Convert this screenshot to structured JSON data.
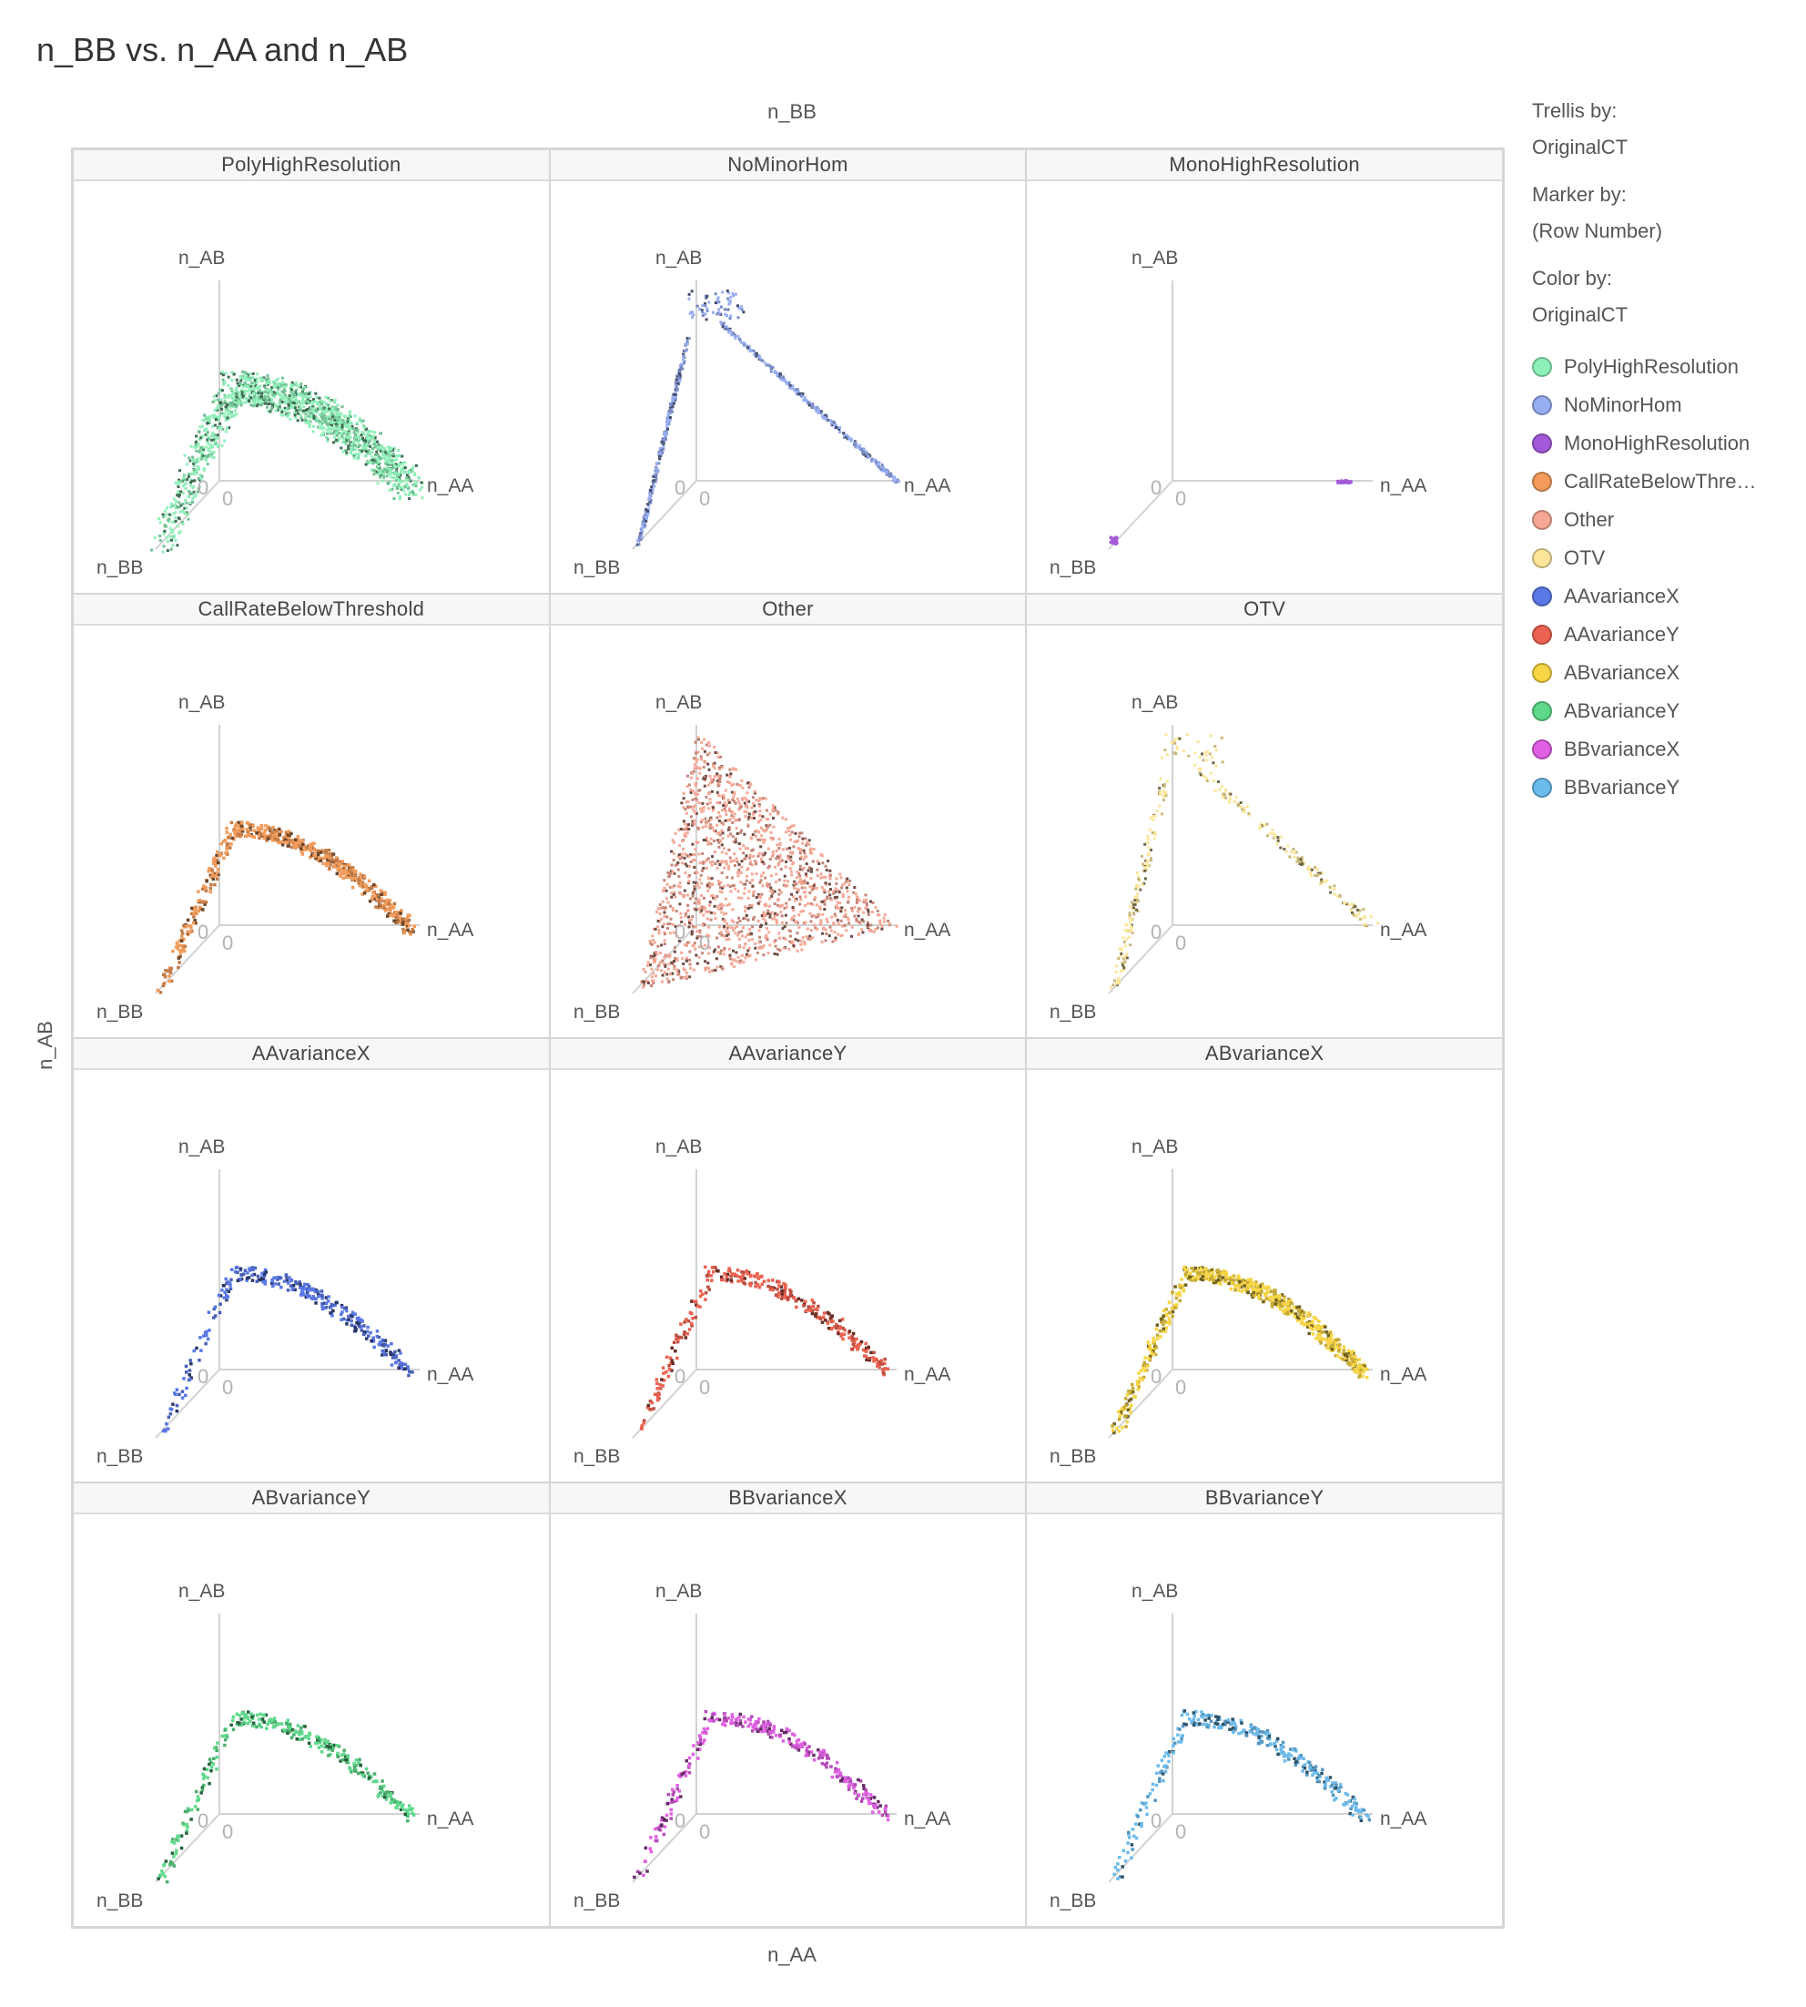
{
  "title": "n_BB vs. n_AA and n_AB",
  "axes": {
    "top": "n_BB",
    "bottom": "n_AA",
    "left": "n_AB"
  },
  "legend": {
    "trellis_by_label": "Trellis by:",
    "trellis_by_value": "OriginalCT",
    "marker_by_label": "Marker by:",
    "marker_by_value": "(Row Number)",
    "color_by_label": "Color by:",
    "color_by_value": "OriginalCT",
    "items": [
      {
        "label": "PolyHighResolution",
        "color": "#8ef0b8"
      },
      {
        "label": "NoMinorHom",
        "color": "#98aef2"
      },
      {
        "label": "MonoHighResolution",
        "color": "#a35ad8"
      },
      {
        "label": "CallRateBelowThre…",
        "color": "#f29b5a"
      },
      {
        "label": "Other",
        "color": "#f6a896"
      },
      {
        "label": "OTV",
        "color": "#fbe69a"
      },
      {
        "label": "AAvarianceX",
        "color": "#5a78e6"
      },
      {
        "label": "AAvarianceY",
        "color": "#eb6250"
      },
      {
        "label": "ABvarianceX",
        "color": "#f7d545"
      },
      {
        "label": "ABvarianceY",
        "color": "#5ed98a"
      },
      {
        "label": "BBvarianceX",
        "color": "#e05fe3"
      },
      {
        "label": "BBvarianceY",
        "color": "#6bbbec"
      }
    ]
  },
  "chart_data": {
    "type": "scatter",
    "projection": "3d",
    "trellis_by": "OriginalCT",
    "axis_labels": {
      "x": "n_AA",
      "y": "n_AB",
      "z": "n_BB"
    },
    "zero_label": "0",
    "panels": [
      {
        "name": "PolyHighResolution",
        "color": "#8ef0b8",
        "shape": "arch",
        "density": "high"
      },
      {
        "name": "NoMinorHom",
        "color": "#98aef2",
        "shape": "edges",
        "density": "medium"
      },
      {
        "name": "MonoHighResolution",
        "color": "#a35ad8",
        "shape": "corners",
        "density": "low"
      },
      {
        "name": "CallRateBelowThreshold",
        "color": "#f29b5a",
        "shape": "arch",
        "density": "medium"
      },
      {
        "name": "Other",
        "color": "#f6a896",
        "shape": "triangle",
        "density": "high"
      },
      {
        "name": "OTV",
        "color": "#fbe69a",
        "shape": "edges",
        "density": "low"
      },
      {
        "name": "AAvarianceX",
        "color": "#5a78e6",
        "shape": "arch",
        "density": "low"
      },
      {
        "name": "AAvarianceY",
        "color": "#eb6250",
        "shape": "arch",
        "density": "low"
      },
      {
        "name": "ABvarianceX",
        "color": "#f7d545",
        "shape": "arch",
        "density": "medium"
      },
      {
        "name": "ABvarianceY",
        "color": "#5ed98a",
        "shape": "arch",
        "density": "low"
      },
      {
        "name": "BBvarianceX",
        "color": "#e05fe3",
        "shape": "arch",
        "density": "low"
      },
      {
        "name": "BBvarianceY",
        "color": "#6bbbec",
        "shape": "arch",
        "density": "low"
      }
    ]
  }
}
